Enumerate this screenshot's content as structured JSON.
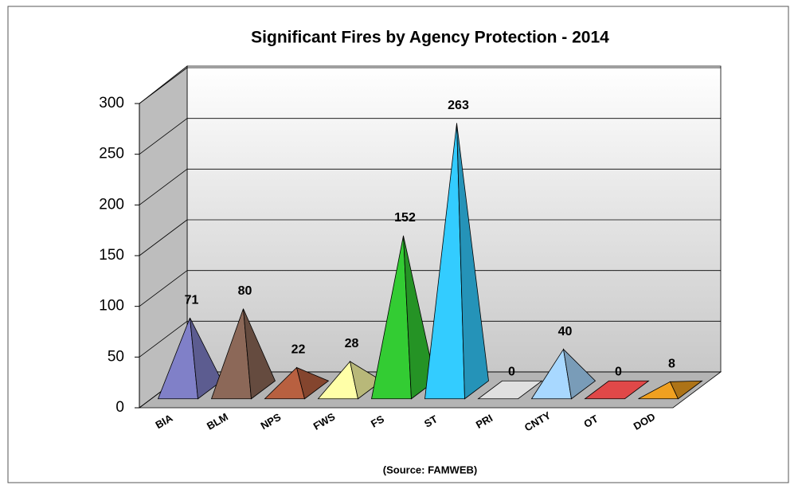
{
  "chart_data": {
    "type": "pyramid3d",
    "title": "Significant Fires by Agency Protection - 2014",
    "source": "(Source: FAMWEB)",
    "categories": [
      "BIA",
      "BLM",
      "NPS",
      "FWS",
      "FS",
      "ST",
      "PRI",
      "CNTY",
      "OT",
      "DOD"
    ],
    "values": [
      71,
      80,
      22,
      28,
      152,
      263,
      0,
      40,
      0,
      8
    ],
    "colors": [
      "#8080c8",
      "#8c6858",
      "#b86040",
      "#ffffa8",
      "#33cc33",
      "#33ccff",
      "#e0e0e0",
      "#a8d8ff",
      "#e04848",
      "#f0a020"
    ],
    "ylim": [
      0,
      300
    ],
    "yticks": [
      0,
      50,
      100,
      150,
      200,
      250,
      300
    ],
    "grid": true
  }
}
